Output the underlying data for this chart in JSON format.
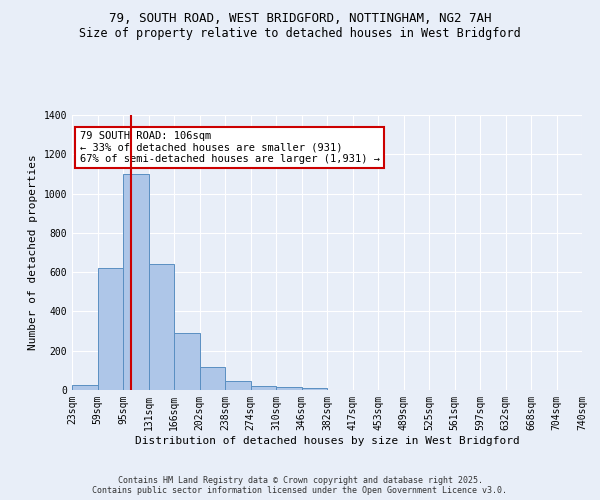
{
  "title_line1": "79, SOUTH ROAD, WEST BRIDGFORD, NOTTINGHAM, NG2 7AH",
  "title_line2": "Size of property relative to detached houses in West Bridgford",
  "xlabel": "Distribution of detached houses by size in West Bridgford",
  "ylabel": "Number of detached properties",
  "bins": [
    "23sqm",
    "59sqm",
    "95sqm",
    "131sqm",
    "166sqm",
    "202sqm",
    "238sqm",
    "274sqm",
    "310sqm",
    "346sqm",
    "382sqm",
    "417sqm",
    "453sqm",
    "489sqm",
    "525sqm",
    "561sqm",
    "597sqm",
    "632sqm",
    "668sqm",
    "704sqm",
    "740sqm"
  ],
  "bar_heights": [
    25,
    620,
    1100,
    640,
    290,
    115,
    45,
    20,
    15,
    10,
    0,
    0,
    0,
    0,
    0,
    0,
    0,
    0,
    0,
    0
  ],
  "bar_color": "#aec6e8",
  "bar_edge_color": "#5a8fc2",
  "vline_x": 2.33,
  "vline_color": "#cc0000",
  "annotation_text": "79 SOUTH ROAD: 106sqm\n← 33% of detached houses are smaller (931)\n67% of semi-detached houses are larger (1,931) →",
  "annotation_box_color": "#ffffff",
  "annotation_box_edge": "#cc0000",
  "annotation_fontsize": 7.5,
  "background_color": "#e8eef8",
  "grid_color": "#ffffff",
  "ylim": [
    0,
    1400
  ],
  "yticks": [
    0,
    200,
    400,
    600,
    800,
    1000,
    1200,
    1400
  ],
  "footer_line1": "Contains HM Land Registry data © Crown copyright and database right 2025.",
  "footer_line2": "Contains public sector information licensed under the Open Government Licence v3.0.",
  "title_fontsize": 9,
  "subtitle_fontsize": 8.5,
  "axis_label_fontsize": 8,
  "tick_fontsize": 7
}
